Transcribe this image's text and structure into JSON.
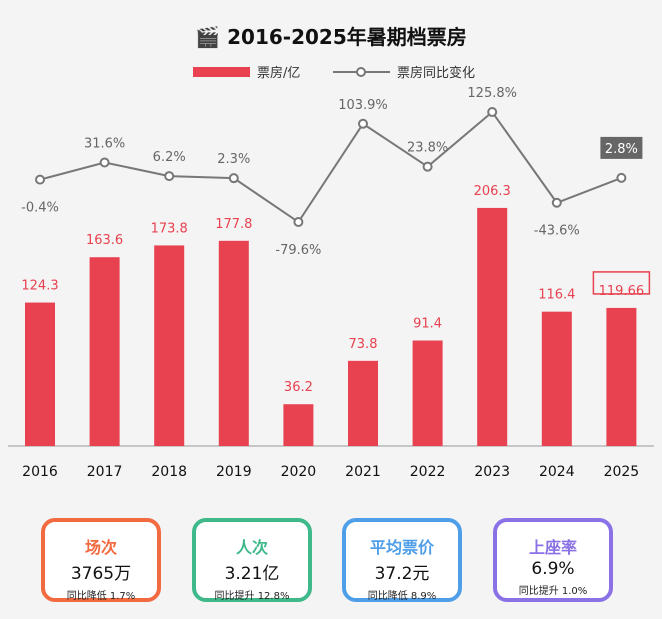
{
  "chart_data": {
    "type": "bar+line",
    "title": "2016-2025年暑期档票房",
    "title_icon": "clapperboard-icon",
    "categories": [
      "2016",
      "2017",
      "2018",
      "2019",
      "2020",
      "2021",
      "2022",
      "2023",
      "2024",
      "2025"
    ],
    "series": [
      {
        "name": "票房/亿",
        "type": "bar",
        "color": "#e8414f",
        "values": [
          124.3,
          163.6,
          173.8,
          177.8,
          36.2,
          73.8,
          91.4,
          206.3,
          116.4,
          119.66
        ],
        "labels": [
          "124.3",
          "163.6",
          "173.8",
          "177.8",
          "36.2",
          "73.8",
          "91.4",
          "206.3",
          "116.4",
          "119.66"
        ]
      },
      {
        "name": "票房同比变化",
        "type": "line",
        "color": "#777777",
        "values": [
          -0.4,
          31.6,
          6.2,
          2.3,
          -79.6,
          103.9,
          23.8,
          125.8,
          -43.6,
          2.8
        ],
        "labels": [
          "-0.4%",
          "31.6%",
          "6.2%",
          "2.3%",
          "-79.6%",
          "103.9%",
          "23.8%",
          "125.8%",
          "-43.6%",
          "2.8%"
        ]
      }
    ],
    "highlight": "2025",
    "legend": "top"
  },
  "cards": [
    {
      "title": "场次",
      "value": "3765万",
      "note": "同比降低 1.7%",
      "color": "#f26a3f"
    },
    {
      "title": "人次",
      "value": "3.21亿",
      "note": "同比提升 12.8%",
      "color": "#3fb88a"
    },
    {
      "title": "平均票价",
      "value": "37.2元",
      "note": "同比降低 8.9%",
      "color": "#4f9ee8"
    },
    {
      "title": "上座率",
      "value": "6.9%",
      "note": "同比提升 1.0%",
      "color": "#8a72e6"
    }
  ]
}
